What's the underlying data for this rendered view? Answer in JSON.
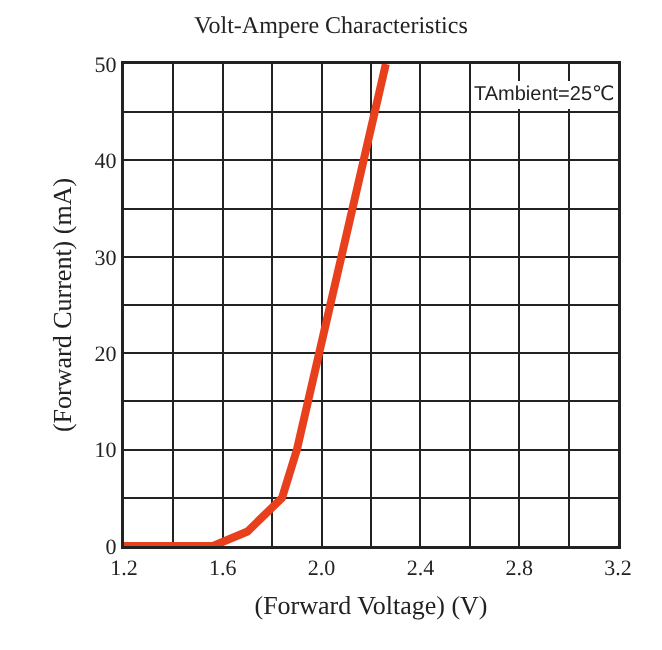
{
  "chart_data": {
    "type": "line",
    "title": "Volt-Ampere Characteristics",
    "xlabel": "(Forward Voltage) (V)",
    "ylabel": "(Forward Current) (mA)",
    "annotations": [
      "TAmbient=25℃"
    ],
    "x": [
      1.2,
      1.56,
      1.7,
      1.84,
      1.9,
      1.99,
      2.08,
      2.17,
      2.26
    ],
    "series": [
      {
        "color": "#e8401c",
        "values": [
          0,
          0,
          1.5,
          5,
          10,
          20,
          30,
          40,
          50
        ]
      }
    ],
    "xlim": [
      1.2,
      3.2
    ],
    "xticks": [
      1.2,
      {
        "value": 1.4,
        "label": null
      },
      1.6,
      {
        "value": 1.8,
        "label": null
      },
      {
        "value": 2.0,
        "label": "2.0"
      },
      {
        "value": 2.2,
        "label": null
      },
      2.4,
      {
        "value": 2.6,
        "label": null
      },
      2.8,
      {
        "value": 3.0,
        "label": null
      },
      3.2
    ],
    "ylim": [
      0,
      50
    ],
    "yticks": [
      0,
      {
        "value": 5,
        "label": null
      },
      10,
      {
        "value": 15,
        "label": null
      },
      20,
      {
        "value": 25,
        "label": null
      },
      30,
      {
        "value": 35,
        "label": null
      },
      40,
      {
        "value": 45,
        "label": null
      },
      50
    ],
    "grid": true,
    "marker": "none",
    "line_style": "solid"
  }
}
